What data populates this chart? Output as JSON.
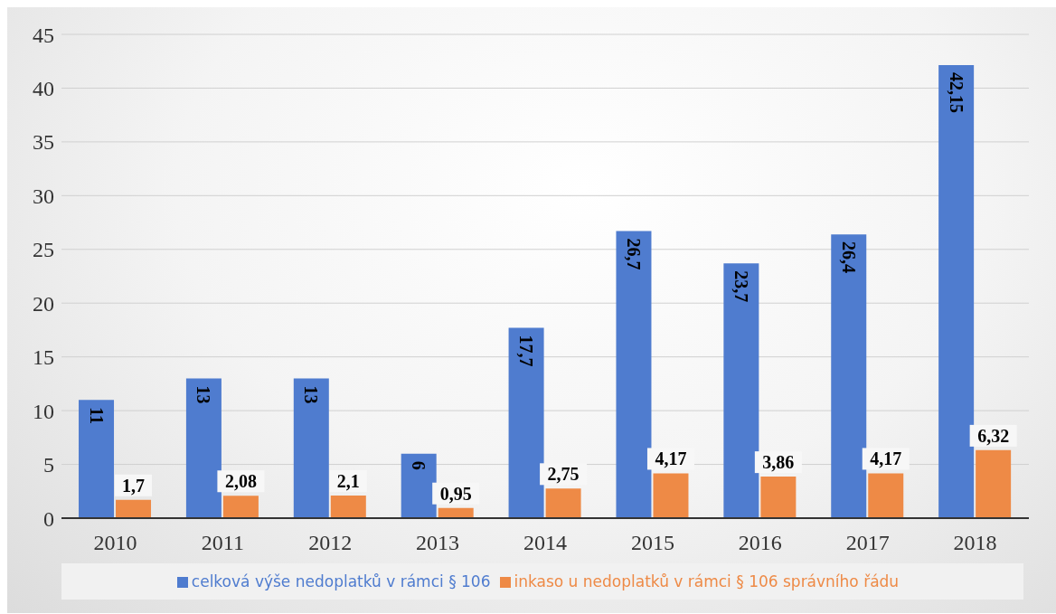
{
  "chart_data": {
    "type": "bar",
    "categories": [
      "2010",
      "2011",
      "2012",
      "2013",
      "2014",
      "2015",
      "2016",
      "2017",
      "2018"
    ],
    "series": [
      {
        "name": "celková výše nedoplatků v rámci § 106",
        "color": "#4f7ccf",
        "values": [
          11,
          13,
          13,
          6,
          17.7,
          26.7,
          23.7,
          26.4,
          42.15
        ],
        "value_labels": [
          "11",
          "13",
          "13",
          "6",
          "17,7",
          "26,7",
          "23,7",
          "26,4",
          "42,15"
        ]
      },
      {
        "name": "inkaso u nedoplatků v rámci § 106 správního řádu",
        "color": "#ee8a46",
        "values": [
          1.7,
          2.08,
          2.1,
          0.95,
          2.75,
          4.17,
          3.86,
          4.17,
          6.32
        ],
        "value_labels": [
          "1,7",
          "2,08",
          "2,1",
          "0,95",
          "2,75",
          "4,17",
          "3,86",
          "4,17",
          "6,32"
        ]
      }
    ],
    "ylim": [
      0,
      45
    ],
    "yticks": [
      0,
      5,
      10,
      15,
      20,
      25,
      30,
      35,
      40,
      45
    ],
    "grid": "y",
    "legend": "bottom"
  }
}
